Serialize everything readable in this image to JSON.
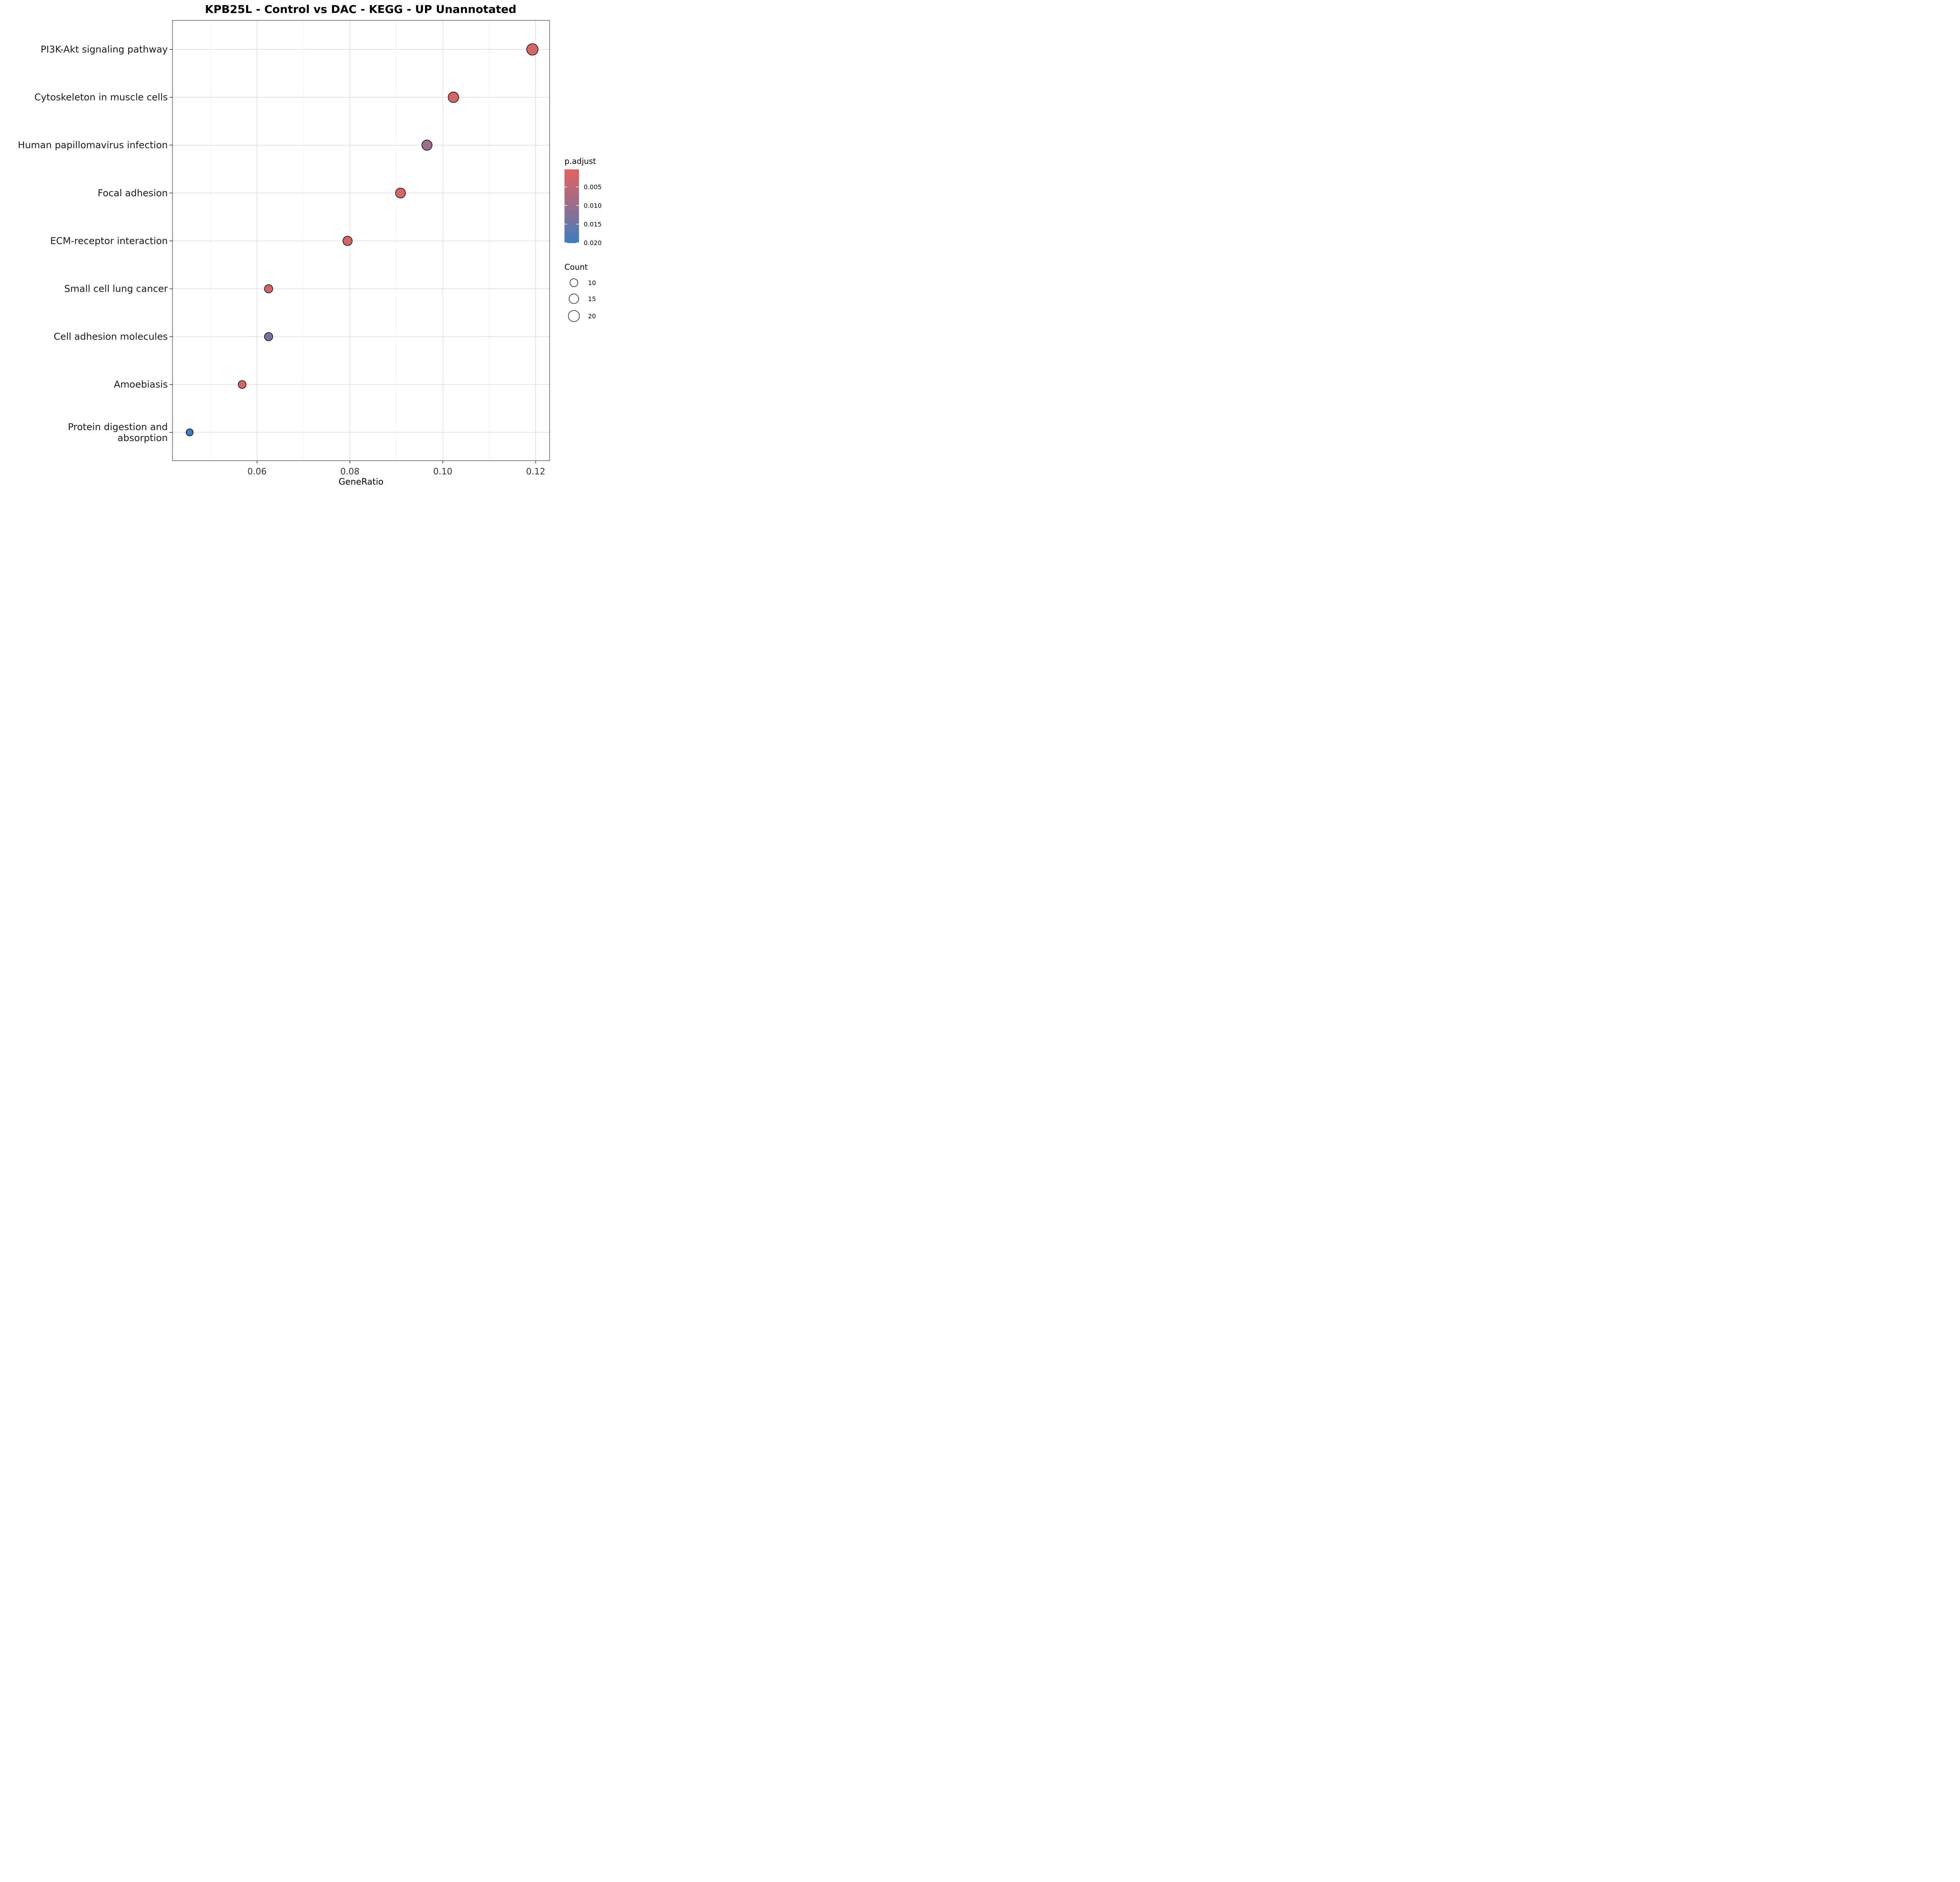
{
  "chart_data": {
    "type": "scatter",
    "title": "KPB25L - Control vs DAC - KEGG - UP Unannotated",
    "xlabel": "GeneRatio",
    "ylabel": "",
    "xlim": [
      0.0418,
      0.123
    ],
    "xticks": [
      0.06,
      0.08,
      0.1,
      0.12
    ],
    "xtick_labels": [
      "0.06",
      "0.08",
      "0.10",
      "0.12"
    ],
    "grid": true,
    "categories": [
      [
        "PI3K-Akt signaling pathway"
      ],
      [
        "Cytoskeleton in muscle cells"
      ],
      [
        "Human papillomavirus infection"
      ],
      [
        "Focal adhesion"
      ],
      [
        "ECM-receptor interaction"
      ],
      [
        "Small cell lung cancer"
      ],
      [
        "Cell adhesion molecules"
      ],
      [
        "Amoebiasis"
      ],
      [
        "Protein digestion and",
        "absorption"
      ]
    ],
    "points": [
      {
        "x": 0.1193,
        "count": 21,
        "p_adjust": 0.002
      },
      {
        "x": 0.1023,
        "count": 18,
        "p_adjust": 0.002
      },
      {
        "x": 0.0966,
        "count": 17,
        "p_adjust": 0.01
      },
      {
        "x": 0.0909,
        "count": 16,
        "p_adjust": 0.002
      },
      {
        "x": 0.0795,
        "count": 14,
        "p_adjust": 0.0025
      },
      {
        "x": 0.0625,
        "count": 11,
        "p_adjust": 0.0025
      },
      {
        "x": 0.0625,
        "count": 11,
        "p_adjust": 0.014
      },
      {
        "x": 0.0568,
        "count": 10,
        "p_adjust": 0.0025
      },
      {
        "x": 0.0455,
        "count": 8,
        "p_adjust": 0.02
      }
    ],
    "color_scale": {
      "title": "p.adjust",
      "low_color": "#e06360",
      "high_color": "#3a7ebe",
      "min": 0.0003,
      "max": 0.0201,
      "ticks": [
        0.005,
        0.01,
        0.015,
        0.02
      ],
      "tick_labels": [
        "0.005",
        "0.010",
        "0.015",
        "0.020"
      ]
    },
    "size_scale": {
      "title": "Count",
      "values": [
        10,
        15,
        20
      ],
      "labels": [
        "10",
        "15",
        "20"
      ]
    },
    "legend_position": "right"
  }
}
